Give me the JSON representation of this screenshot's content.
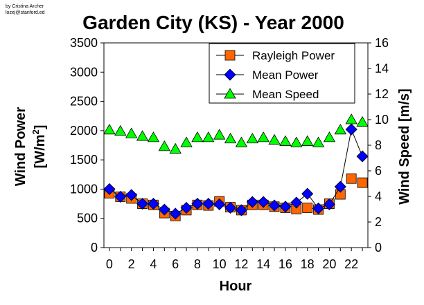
{
  "credit": {
    "line1": "by Cristina Archer",
    "line2": "lozej@stanford.ed"
  },
  "colors": {
    "rayleigh": "#FF6600",
    "mean_power": "#0000FF",
    "mean_speed": "#00FF00",
    "line": "#000000"
  },
  "chart_data": {
    "type": "line",
    "title": "Garden City (KS) - Year 2000",
    "xlabel": "Hour",
    "ylabel_left_line1": "Wind Power",
    "ylabel_left_line2": "[W/m",
    "ylabel_left_sup": "2",
    "ylabel_left_close": "]",
    "ylabel_right": "Wind Speed [m/s]",
    "x": [
      0,
      1,
      2,
      3,
      4,
      5,
      6,
      7,
      8,
      9,
      10,
      11,
      12,
      13,
      14,
      15,
      16,
      17,
      18,
      19,
      20,
      21,
      22,
      23
    ],
    "xlim": [
      -0.5,
      23.5
    ],
    "x_ticks": [
      "0",
      "2",
      "4",
      "6",
      "8",
      "10",
      "12",
      "14",
      "16",
      "18",
      "20",
      "22"
    ],
    "ylim_left": [
      0,
      3500
    ],
    "y_ticks_left": [
      "0",
      "500",
      "1000",
      "1500",
      "2000",
      "2500",
      "3000",
      "3500"
    ],
    "ylim_right": [
      0,
      16
    ],
    "y_ticks_right": [
      "0",
      "2",
      "4",
      "6",
      "8",
      "10",
      "12",
      "14",
      "16"
    ],
    "legend_position": "top-right",
    "series": [
      {
        "name": "Rayleigh Power",
        "axis": "left",
        "marker": "square",
        "line": false,
        "values": [
          930,
          870,
          840,
          750,
          730,
          590,
          540,
          640,
          730,
          720,
          790,
          690,
          640,
          730,
          730,
          700,
          680,
          660,
          680,
          650,
          750,
          910,
          1180,
          1110
        ]
      },
      {
        "name": "Mean Power",
        "axis": "left",
        "marker": "diamond",
        "line": true,
        "values": [
          1000,
          870,
          900,
          750,
          750,
          650,
          580,
          680,
          750,
          750,
          740,
          680,
          640,
          780,
          780,
          720,
          700,
          770,
          920,
          670,
          740,
          1040,
          2020,
          1560
        ]
      },
      {
        "name": "Mean Speed",
        "axis": "right",
        "marker": "triangle",
        "line": false,
        "values": [
          9.2,
          9.1,
          8.9,
          8.7,
          8.6,
          7.9,
          7.7,
          8.2,
          8.6,
          8.6,
          8.8,
          8.5,
          8.2,
          8.5,
          8.6,
          8.4,
          8.3,
          8.2,
          8.3,
          8.2,
          8.6,
          9.2,
          10.0,
          9.8
        ]
      }
    ]
  }
}
